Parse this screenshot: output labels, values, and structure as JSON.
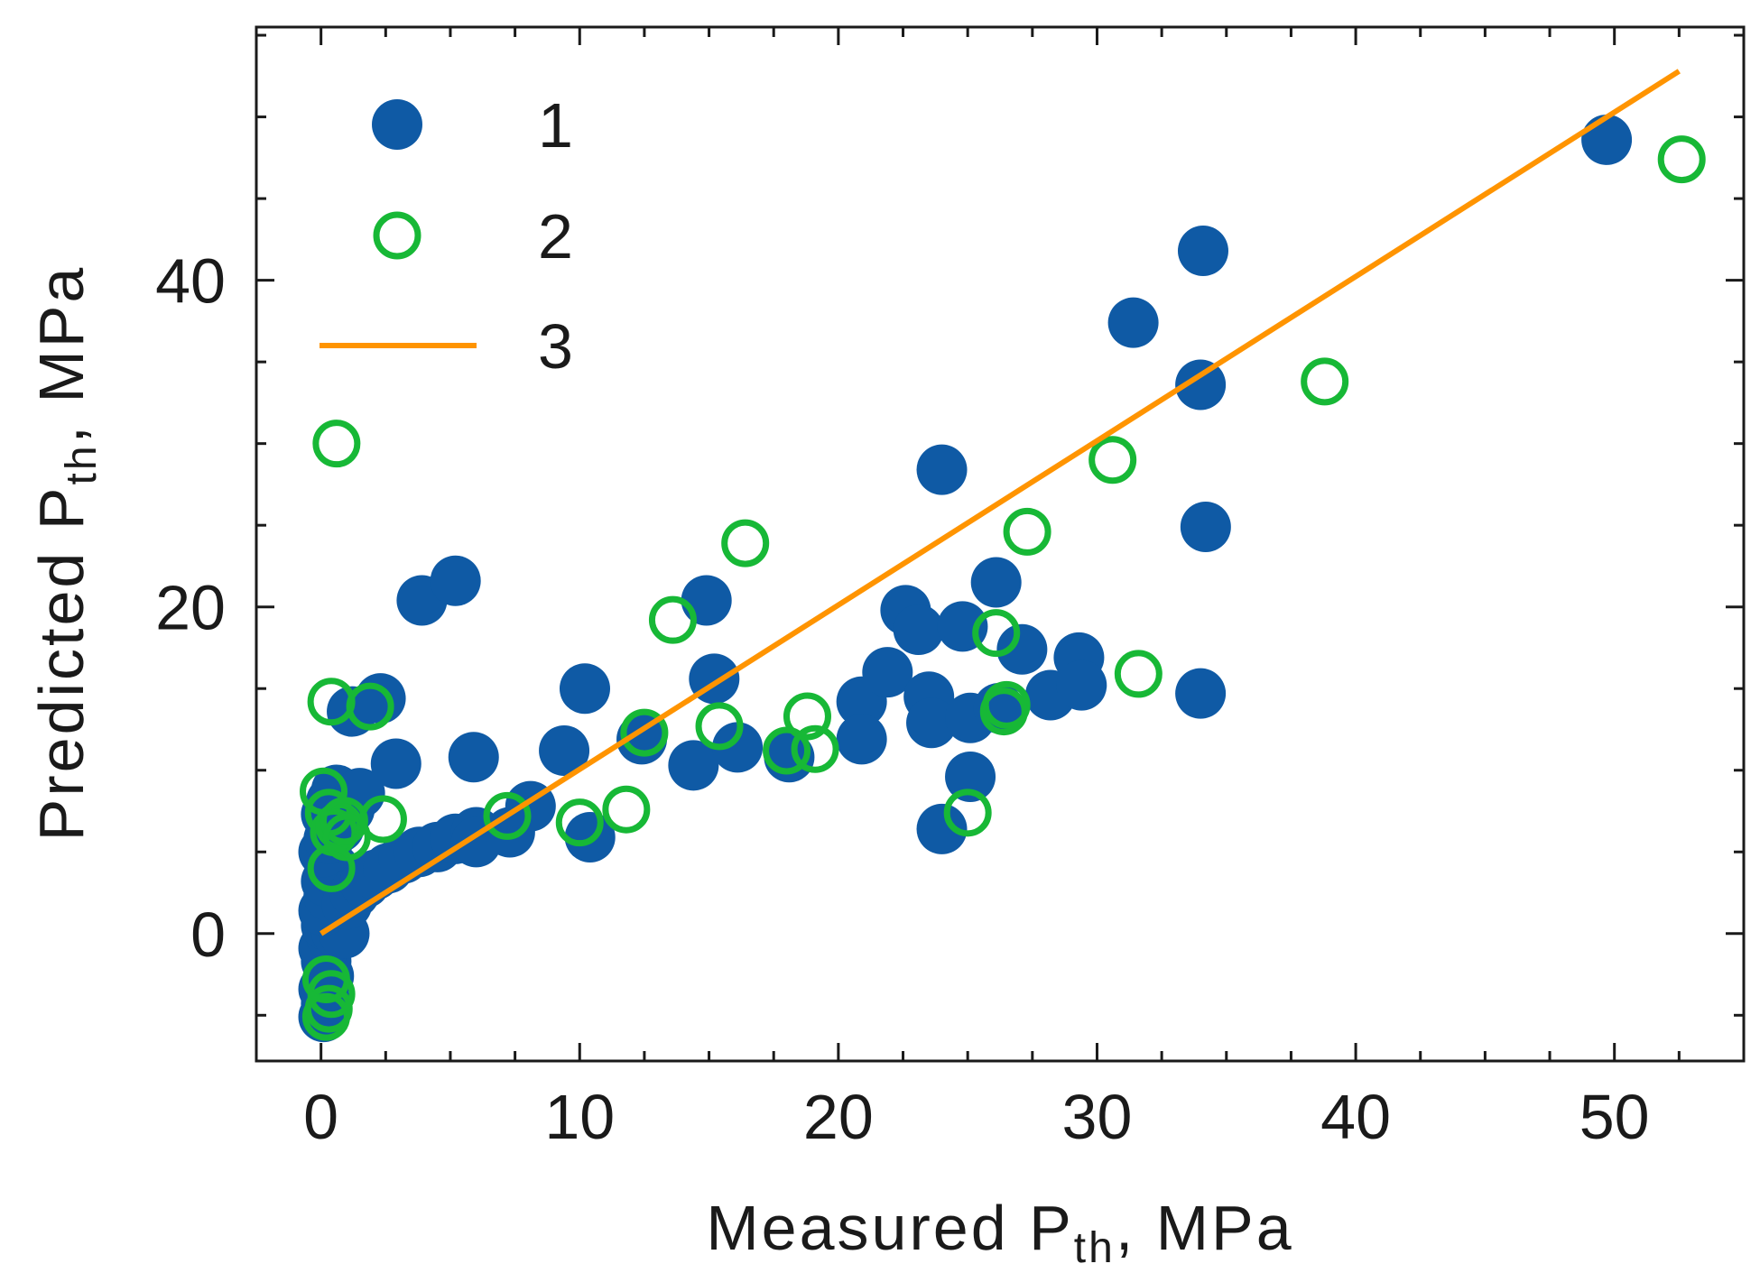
{
  "chart_data": {
    "type": "scatter",
    "title": "",
    "xlabel": {
      "main": "Measured P",
      "sub": "th",
      "unit": ", MPa"
    },
    "ylabel": {
      "main": "Predicted P",
      "sub": "th",
      "unit": ", MPa"
    },
    "xlim": [
      -2.5,
      55
    ],
    "ylim": [
      -7.8,
      55.5
    ],
    "x_major_ticks": [
      0,
      10,
      20,
      30,
      40,
      50
    ],
    "x_tick_labels": [
      "0",
      "10",
      "20",
      "30",
      "40",
      "50"
    ],
    "x_minor_ticks": [
      -2.5,
      2.5,
      5,
      7.5,
      12.5,
      15,
      17.5,
      22.5,
      25,
      27.5,
      32.5,
      35,
      37.5,
      42.5,
      45,
      47.5,
      52.5,
      55
    ],
    "y_major_ticks": [
      0,
      20,
      40
    ],
    "y_tick_labels": [
      "0",
      "20",
      "40"
    ],
    "y_minor_ticks": [
      -5,
      5,
      10,
      15,
      25,
      30,
      35,
      45,
      50,
      55
    ],
    "grid": false,
    "legend_position": "top-left",
    "series": [
      {
        "name": "1",
        "marker": "filled-circle",
        "color": "#0f5aa5",
        "points": [
          [
            0.1,
            -5.1
          ],
          [
            0.2,
            -4.3
          ],
          [
            0.1,
            -3.4
          ],
          [
            0.3,
            -2.6
          ],
          [
            0.2,
            -1.7
          ],
          [
            0.1,
            -0.9
          ],
          [
            0.4,
            -0.2
          ],
          [
            0.2,
            0.5
          ],
          [
            0.6,
            0.1
          ],
          [
            0.9,
            0.0
          ],
          [
            0.1,
            1.4
          ],
          [
            0.3,
            2.3
          ],
          [
            0.2,
            3.2
          ],
          [
            0.5,
            4.0
          ],
          [
            0.1,
            5.0
          ],
          [
            0.3,
            5.8
          ],
          [
            0.7,
            6.5
          ],
          [
            0.2,
            7.3
          ],
          [
            0.4,
            8.1
          ],
          [
            0.6,
            8.8
          ],
          [
            1.0,
            1.8
          ],
          [
            1.3,
            2.5
          ],
          [
            1.7,
            3.1
          ],
          [
            2.1,
            3.6
          ],
          [
            2.6,
            4.0
          ],
          [
            3.2,
            4.6
          ],
          [
            3.8,
            5.0
          ],
          [
            4.5,
            5.3
          ],
          [
            5.2,
            5.8
          ],
          [
            6.0,
            6.2
          ],
          [
            1.1,
            7.6
          ],
          [
            1.5,
            8.6
          ],
          [
            1.2,
            13.6
          ],
          [
            2.3,
            14.4
          ],
          [
            2.9,
            10.4
          ],
          [
            3.9,
            20.4
          ],
          [
            5.2,
            21.6
          ],
          [
            5.9,
            10.8
          ],
          [
            6.0,
            5.6
          ],
          [
            7.3,
            6.2
          ],
          [
            8.1,
            7.8
          ],
          [
            9.4,
            11.2
          ],
          [
            10.2,
            15.0
          ],
          [
            10.4,
            5.9
          ],
          [
            12.4,
            11.9
          ],
          [
            14.4,
            10.3
          ],
          [
            14.9,
            20.4
          ],
          [
            15.2,
            15.6
          ],
          [
            16.1,
            11.4
          ],
          [
            18.1,
            10.8
          ],
          [
            20.9,
            14.2
          ],
          [
            20.9,
            11.9
          ],
          [
            21.9,
            16.0
          ],
          [
            22.6,
            19.8
          ],
          [
            23.1,
            18.6
          ],
          [
            23.5,
            14.5
          ],
          [
            23.6,
            12.9
          ],
          [
            24.0,
            6.4
          ],
          [
            24.0,
            28.4
          ],
          [
            24.8,
            18.8
          ],
          [
            25.1,
            9.6
          ],
          [
            25.1,
            13.2
          ],
          [
            26.1,
            21.5
          ],
          [
            26.2,
            13.8
          ],
          [
            27.1,
            17.4
          ],
          [
            28.2,
            14.6
          ],
          [
            29.3,
            16.9
          ],
          [
            29.4,
            15.2
          ],
          [
            31.4,
            37.4
          ],
          [
            34.0,
            33.6
          ],
          [
            34.1,
            41.8
          ],
          [
            34.2,
            24.9
          ],
          [
            34.0,
            14.7
          ],
          [
            49.7,
            48.6
          ]
        ]
      },
      {
        "name": "2",
        "marker": "open-circle",
        "color": "#17b836",
        "points": [
          [
            0.2,
            -5.1
          ],
          [
            0.3,
            -4.6
          ],
          [
            0.4,
            -3.7
          ],
          [
            0.2,
            -2.8
          ],
          [
            0.6,
            30.0
          ],
          [
            0.4,
            14.2
          ],
          [
            0.1,
            8.7
          ],
          [
            0.3,
            7.4
          ],
          [
            0.5,
            6.2
          ],
          [
            0.7,
            6.6
          ],
          [
            0.9,
            6.9
          ],
          [
            1.0,
            5.9
          ],
          [
            0.4,
            4.0
          ],
          [
            1.9,
            13.9
          ],
          [
            2.4,
            7.0
          ],
          [
            7.2,
            7.2
          ],
          [
            10.0,
            6.8
          ],
          [
            11.8,
            7.6
          ],
          [
            12.5,
            12.3
          ],
          [
            13.6,
            19.2
          ],
          [
            15.4,
            12.7
          ],
          [
            16.4,
            23.9
          ],
          [
            18.0,
            11.2
          ],
          [
            18.8,
            13.3
          ],
          [
            19.1,
            11.3
          ],
          [
            25.0,
            7.4
          ],
          [
            26.1,
            18.4
          ],
          [
            26.5,
            14.0
          ],
          [
            26.4,
            13.6
          ],
          [
            27.3,
            24.6
          ],
          [
            30.6,
            29.0
          ],
          [
            31.6,
            15.9
          ],
          [
            38.8,
            33.8
          ],
          [
            52.6,
            47.4
          ]
        ]
      },
      {
        "name": "3",
        "marker": "line",
        "color": "#ff9400",
        "points": [
          [
            0,
            0
          ],
          [
            52.5,
            52.8
          ]
        ]
      }
    ]
  }
}
